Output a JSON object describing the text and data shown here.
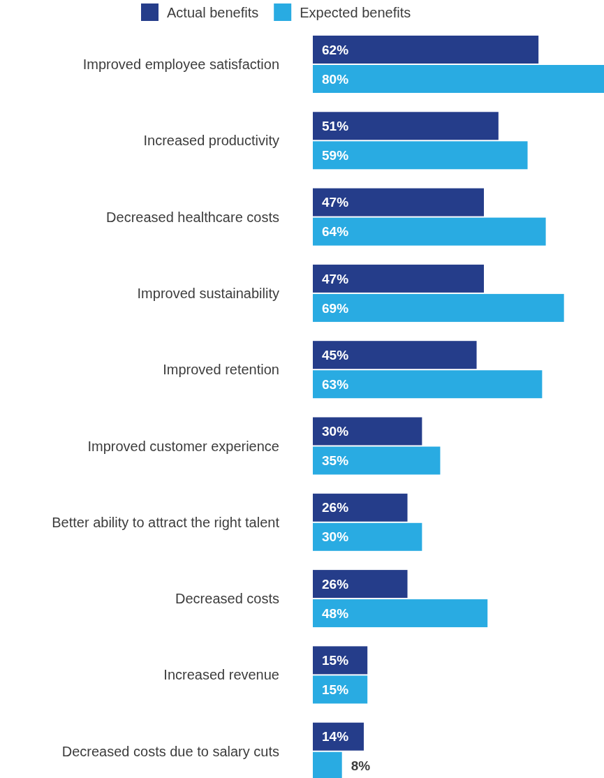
{
  "chart_data": {
    "type": "bar",
    "orientation": "horizontal",
    "legend": "top",
    "xlim": [
      0,
      80
    ],
    "tick_labels": "y",
    "categories": [
      "Improved employee satisfaction",
      "Increased productivity",
      "Decreased healthcare costs",
      "Improved sustainability",
      "Improved retention",
      "Improved customer experience",
      "Better ability to attract the right talent",
      "Decreased costs",
      "Increased revenue",
      "Decreased costs due to salary cuts"
    ],
    "series": [
      {
        "name": "Actual benefits",
        "color": "#253d8a",
        "values": [
          62,
          51,
          47,
          47,
          45,
          30,
          26,
          26,
          15,
          14
        ],
        "value_labels": [
          "62%",
          "51%",
          "47%",
          "47%",
          "45%",
          "30%",
          "26%",
          "26%",
          "15%",
          "14%"
        ]
      },
      {
        "name": "Expected benefits",
        "color": "#29abe2",
        "values": [
          80,
          59,
          64,
          69,
          63,
          35,
          30,
          48,
          15,
          8
        ],
        "value_labels": [
          "80%",
          "59%",
          "64%",
          "69%",
          "63%",
          "35%",
          "30%",
          "48%",
          "15%",
          "8%"
        ]
      }
    ]
  }
}
